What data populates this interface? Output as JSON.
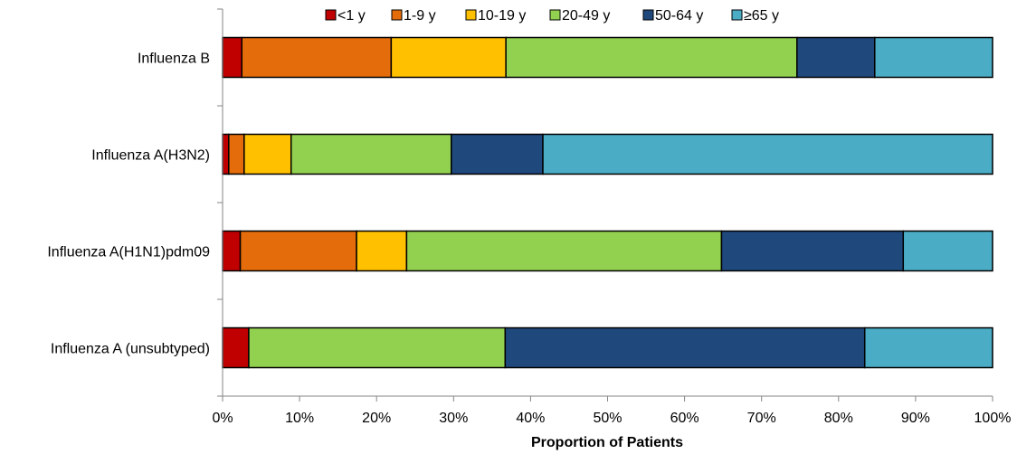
{
  "chart_data": {
    "type": "bar",
    "orientation": "horizontal",
    "stacked": true,
    "normalized": true,
    "title": "",
    "xlabel": "Proportion of Patients",
    "ylabel": "",
    "xlim": [
      0,
      100
    ],
    "xticks": [
      "0%",
      "10%",
      "20%",
      "30%",
      "40%",
      "50%",
      "60%",
      "70%",
      "80%",
      "90%",
      "100%"
    ],
    "legend_position": "top",
    "grid": false,
    "categories": [
      "Influenza B",
      "Influenza A(H3N2)",
      "Influenza A(H1N1)pdm09",
      "Influenza A (unsubtyped)"
    ],
    "series": [
      {
        "name": "<1 y",
        "color": "#C00000",
        "values": [
          2.5,
          0.8,
          2.3,
          3.4
        ]
      },
      {
        "name": "1-9 y",
        "color": "#E46C0A",
        "values": [
          19.4,
          2.0,
          15.1,
          0
        ]
      },
      {
        "name": "10-19 y",
        "color": "#FFC000",
        "values": [
          14.9,
          6.1,
          6.5,
          0
        ]
      },
      {
        "name": "20-49 y",
        "color": "#92D050",
        "values": [
          37.8,
          20.8,
          40.9,
          33.3
        ]
      },
      {
        "name": "50-64 y",
        "color": "#1F497D",
        "values": [
          10.1,
          11.9,
          23.6,
          46.7
        ]
      },
      {
        "name": "≥65 y",
        "color": "#4BACC6",
        "values": [
          15.3,
          58.4,
          11.6,
          16.6
        ]
      }
    ]
  }
}
